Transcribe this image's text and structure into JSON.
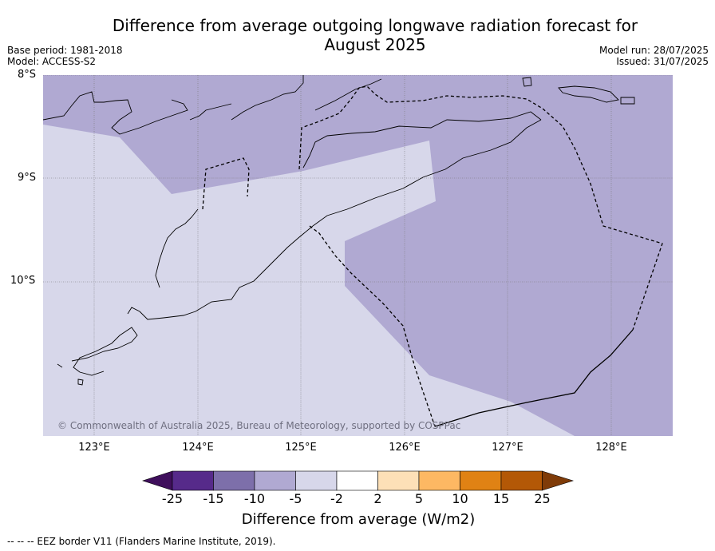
{
  "title_line1": "Difference from average outgoing longwave radiation forecast for",
  "title_line2": "August 2025",
  "base_period": "Base period: 1981-2018",
  "model": "Model: ACCESS-S2",
  "model_run": "Model run: 28/07/2025",
  "issued": "Issued: 31/07/2025",
  "lat_labels": [
    "8°S",
    "9°S",
    "10°S"
  ],
  "lon_labels": [
    "123°E",
    "124°E",
    "125°E",
    "126°E",
    "127°E",
    "128°E"
  ],
  "copyright": "© Commonwealth of Australia 2025, Bureau of Meteorology, supported by COSPPac",
  "colorbar": {
    "ticks": [
      "-25",
      "-15",
      "-10",
      "-5",
      "-2",
      "2",
      "5",
      "10",
      "15",
      "25"
    ],
    "label": "Difference from average (W/m2)",
    "colors": [
      "#3f0f5c",
      "#562a8a",
      "#7d6faa",
      "#b0a9d2",
      "#d7d7ea",
      "#ffffff",
      "#fde0b7",
      "#fdb863",
      "#e08214",
      "#b35806",
      "#7f3b08"
    ]
  },
  "footnote": "--  --  -- EEZ border V11 (Flanders Marine Institute, 2019)."
}
